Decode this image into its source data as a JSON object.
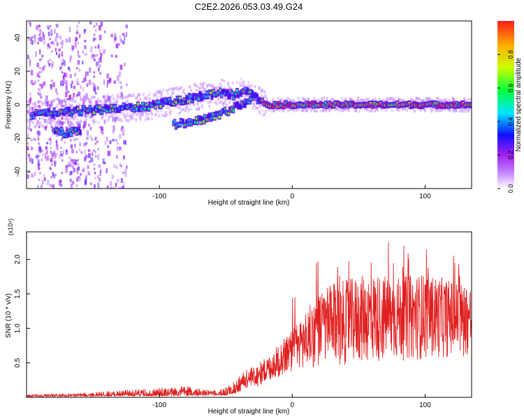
{
  "figure_title": "C2E2.2026.053.03.49.G24",
  "colors": {
    "snr_line": "#e02020",
    "frame": "#000000"
  },
  "chart_data": [
    {
      "type": "heatmap",
      "title": "C2E2.2026.053.03.49.G24",
      "xlabel": "Height of straight line (km)",
      "ylabel": "Frequency (Hz)",
      "xlim": [
        -200,
        135
      ],
      "ylim": [
        -50,
        50
      ],
      "xticks": [
        -100,
        0,
        100
      ],
      "yticks": [
        -40,
        -20,
        0,
        20,
        40
      ],
      "colorbar": {
        "label": "Normalized spectral amplitude",
        "range": [
          0,
          1
        ],
        "ticks": [
          "0.0",
          "0.2",
          "0.4",
          "0.6",
          "0.8"
        ],
        "colormap": [
          "#ffffff",
          "#a020f0",
          "#0000ff",
          "#00e5ff",
          "#00ff40",
          "#c8ff00",
          "#ffb000",
          "#ff1e1e"
        ]
      },
      "ridges": [
        {
          "name": "main",
          "points": [
            [
              -197,
              -6
            ],
            [
              -180,
              -5
            ],
            [
              -165,
              -4
            ],
            [
              -150,
              -3
            ],
            [
              -130,
              -2
            ],
            [
              -110,
              -1
            ],
            [
              -90,
              2
            ],
            [
              -70,
              5
            ],
            [
              -55,
              7
            ],
            [
              -45,
              6
            ],
            [
              -35,
              9
            ],
            [
              -28,
              4
            ],
            [
              -20,
              0
            ],
            [
              0,
              0
            ],
            [
              40,
              0
            ],
            [
              80,
              0
            ],
            [
              135,
              0
            ]
          ]
        },
        {
          "name": "branch",
          "points": [
            [
              -90,
              -12
            ],
            [
              -70,
              -9
            ],
            [
              -60,
              -7
            ],
            [
              -50,
              -4
            ],
            [
              -40,
              0
            ],
            [
              -30,
              4
            ]
          ]
        },
        {
          "name": "low",
          "points": [
            [
              -180,
              -16
            ],
            [
              -170,
              -17
            ],
            [
              -160,
              -15
            ]
          ]
        }
      ]
    },
    {
      "type": "line",
      "xlabel": "Height of straight line (km)",
      "ylabel": "SNR (10 * v/v)",
      "exponent_label": "(x10⁴)",
      "xlim": [
        -200,
        135
      ],
      "ylim": [
        0,
        2.4
      ],
      "xticks": [
        -100,
        0,
        100
      ],
      "yticks": [
        0.5,
        1.0,
        1.5,
        2.0
      ],
      "ytick_labels": [
        "0.5",
        "1.0",
        "1.5",
        "2.0"
      ],
      "series": [
        {
          "name": "SNR",
          "envelope": [
            [
              -200,
              0.04
            ],
            [
              -160,
              0.06
            ],
            [
              -130,
              0.1
            ],
            [
              -110,
              0.12
            ],
            [
              -90,
              0.15
            ],
            [
              -80,
              0.18
            ],
            [
              -70,
              0.12
            ],
            [
              -55,
              0.1
            ],
            [
              -45,
              0.22
            ],
            [
              -35,
              0.4
            ],
            [
              -25,
              0.5
            ],
            [
              -15,
              0.65
            ],
            [
              -5,
              0.9
            ],
            [
              5,
              1.1
            ],
            [
              15,
              1.4
            ],
            [
              25,
              1.6
            ],
            [
              40,
              1.7
            ],
            [
              60,
              1.8
            ],
            [
              80,
              1.75
            ],
            [
              100,
              1.8
            ],
            [
              120,
              1.7
            ],
            [
              135,
              1.65
            ]
          ],
          "floor": [
            [
              -200,
              0.01
            ],
            [
              -100,
              0.02
            ],
            [
              -50,
              0.03
            ],
            [
              -30,
              0.12
            ],
            [
              -15,
              0.25
            ],
            [
              0,
              0.35
            ],
            [
              20,
              0.45
            ],
            [
              60,
              0.5
            ],
            [
              100,
              0.55
            ],
            [
              135,
              0.6
            ]
          ],
          "samples_per_km": 5,
          "seed": 17
        }
      ]
    }
  ]
}
